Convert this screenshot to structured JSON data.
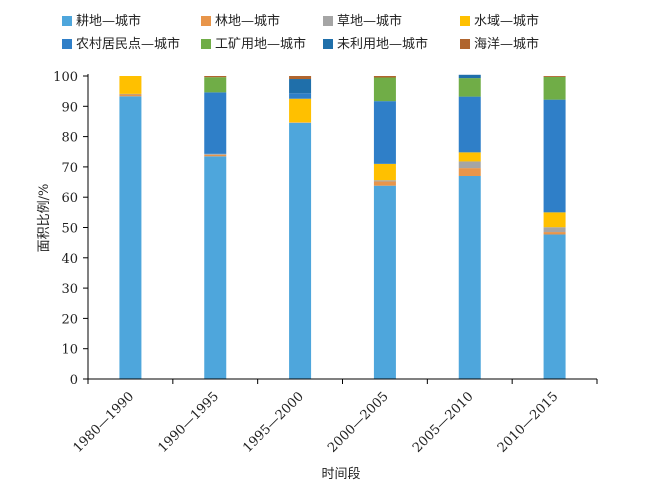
{
  "chart_data": {
    "type": "bar",
    "stacked": true,
    "categories": [
      "1980—1990",
      "1990—1995",
      "1995—2000",
      "2000—2005",
      "2005—2010",
      "2010—2015"
    ],
    "series": [
      {
        "name": "耕地—城市",
        "color": "#4ea6dc",
        "values": [
          93.3,
          73.5,
          84.5,
          63.8,
          67.0,
          47.7
        ]
      },
      {
        "name": "林地—城市",
        "color": "#e8954a",
        "values": [
          0.6,
          0.5,
          0.1,
          1.4,
          2.6,
          0.8
        ]
      },
      {
        "name": "草地—城市",
        "color": "#a5a5a5",
        "values": [
          0.2,
          0.3,
          0.1,
          0.4,
          2.2,
          1.6
        ]
      },
      {
        "name": "水域—城市",
        "color": "#ffc000",
        "values": [
          5.9,
          0.0,
          7.8,
          5.4,
          3.0,
          4.9
        ]
      },
      {
        "name": "农村居民点—城市",
        "color": "#2f7fc8",
        "values": [
          0.0,
          20.3,
          1.8,
          20.7,
          18.4,
          37.2
        ]
      },
      {
        "name": "工矿用地—城市",
        "color": "#70ad47",
        "values": [
          0.0,
          5.0,
          0.0,
          7.8,
          6.1,
          7.5
        ]
      },
      {
        "name": "未利用地—城市",
        "color": "#1f6faa",
        "values": [
          0.0,
          0.0,
          4.7,
          0.0,
          1.1,
          0.0
        ]
      },
      {
        "name": "海洋—城市",
        "color": "#b0652e",
        "values": [
          0.0,
          0.4,
          1.0,
          0.5,
          0.0,
          0.3
        ]
      }
    ],
    "xlabel": "时间段",
    "ylabel": "面积比例/%",
    "ylim": [
      0,
      100
    ],
    "yticks": [
      "0",
      "10",
      "20",
      "30",
      "40",
      "50",
      "60",
      "70",
      "80",
      "90",
      "100"
    ],
    "grid": false,
    "legend_position": "top"
  }
}
